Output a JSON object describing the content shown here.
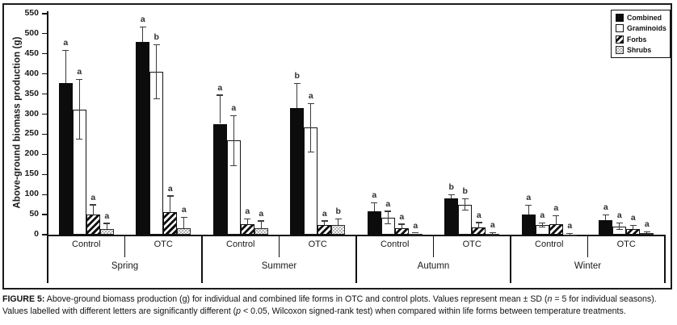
{
  "chart_data": {
    "type": "bar",
    "title": "",
    "ylabel": "Above-ground biomass production (g)",
    "xlabel": "",
    "ylim": [
      0,
      550
    ],
    "ytick_step": 50,
    "grid": false,
    "legend_position": "top-right",
    "error_bars": "mean ± SD",
    "series_names": [
      "Combined",
      "Graminoids",
      "Forbs",
      "Shrubs"
    ],
    "series_styles": [
      {
        "name": "Combined",
        "pattern": "solid-black",
        "color": "#0c0c0c"
      },
      {
        "name": "Graminoids",
        "pattern": "solid-white",
        "color": "#ffffff"
      },
      {
        "name": "Forbs",
        "pattern": "diagonal-hatch",
        "color": "#101010"
      },
      {
        "name": "Shrubs",
        "pattern": "dotted",
        "color": "#8a8a8a"
      }
    ],
    "seasons": [
      "Spring",
      "Summer",
      "Autumn",
      "Winter"
    ],
    "treatments": [
      "Control",
      "OTC"
    ],
    "groups": [
      {
        "season": "Spring",
        "treatment": "Control",
        "bars": [
          {
            "series": "Combined",
            "mean": 377,
            "sd": 80,
            "letter": "a"
          },
          {
            "series": "Graminoids",
            "mean": 312,
            "sd": 73,
            "letter": "a"
          },
          {
            "series": "Forbs",
            "mean": 50,
            "sd": 23,
            "letter": "a"
          },
          {
            "series": "Shrubs",
            "mean": 15,
            "sd": 12,
            "letter": "a"
          }
        ]
      },
      {
        "season": "Spring",
        "treatment": "OTC",
        "bars": [
          {
            "series": "Combined",
            "mean": 480,
            "sd": 35,
            "letter": "a"
          },
          {
            "series": "Graminoids",
            "mean": 406,
            "sd": 66,
            "letter": "b"
          },
          {
            "series": "Forbs",
            "mean": 57,
            "sd": 38,
            "letter": "a"
          },
          {
            "series": "Shrubs",
            "mean": 17,
            "sd": 25,
            "letter": "a"
          }
        ]
      },
      {
        "season": "Summer",
        "treatment": "Control",
        "bars": [
          {
            "series": "Combined",
            "mean": 276,
            "sd": 70,
            "letter": "a"
          },
          {
            "series": "Graminoids",
            "mean": 234,
            "sd": 61,
            "letter": "a"
          },
          {
            "series": "Forbs",
            "mean": 27,
            "sd": 11,
            "letter": "a"
          },
          {
            "series": "Shrubs",
            "mean": 16,
            "sd": 17,
            "letter": "a"
          }
        ]
      },
      {
        "season": "Summer",
        "treatment": "OTC",
        "bars": [
          {
            "series": "Combined",
            "mean": 315,
            "sd": 60,
            "letter": "b"
          },
          {
            "series": "Graminoids",
            "mean": 266,
            "sd": 59,
            "letter": "a"
          },
          {
            "series": "Forbs",
            "mean": 25,
            "sd": 8,
            "letter": "a"
          },
          {
            "series": "Shrubs",
            "mean": 24,
            "sd": 14,
            "letter": "b"
          }
        ]
      },
      {
        "season": "Autumn",
        "treatment": "Control",
        "bars": [
          {
            "series": "Combined",
            "mean": 58,
            "sd": 20,
            "letter": "a"
          },
          {
            "series": "Graminoids",
            "mean": 43,
            "sd": 14,
            "letter": "a"
          },
          {
            "series": "Forbs",
            "mean": 16,
            "sd": 9,
            "letter": "a"
          },
          {
            "series": "Shrubs",
            "mean": 2,
            "sd": 1,
            "letter": "a"
          }
        ]
      },
      {
        "season": "Autumn",
        "treatment": "OTC",
        "bars": [
          {
            "series": "Combined",
            "mean": 90,
            "sd": 8,
            "letter": "b"
          },
          {
            "series": "Graminoids",
            "mean": 75,
            "sd": 13,
            "letter": "b"
          },
          {
            "series": "Forbs",
            "mean": 18,
            "sd": 11,
            "letter": "a"
          },
          {
            "series": "Shrubs",
            "mean": 2,
            "sd": 2,
            "letter": "a"
          }
        ]
      },
      {
        "season": "Winter",
        "treatment": "Control",
        "bars": [
          {
            "series": "Combined",
            "mean": 50,
            "sd": 22,
            "letter": "a"
          },
          {
            "series": "Graminoids",
            "mean": 24,
            "sd": 4,
            "letter": "a"
          },
          {
            "series": "Forbs",
            "mean": 26,
            "sd": 20,
            "letter": "a"
          },
          {
            "series": "Shrubs",
            "mean": 1,
            "sd": 1,
            "letter": "a"
          }
        ]
      },
      {
        "season": "Winter",
        "treatment": "OTC",
        "bars": [
          {
            "series": "Combined",
            "mean": 36,
            "sd": 12,
            "letter": "a"
          },
          {
            "series": "Graminoids",
            "mean": 21,
            "sd": 7,
            "letter": "a"
          },
          {
            "series": "Forbs",
            "mean": 14,
            "sd": 8,
            "letter": "a"
          },
          {
            "series": "Shrubs",
            "mean": 4,
            "sd": 2,
            "letter": "a"
          }
        ]
      }
    ]
  },
  "caption": {
    "figure_label": "FIGURE 5:",
    "line1_pre": " Above-ground biomass production (g) for individual and combined life forms in OTC and control plots. Values represent mean ± SD (",
    "n_symbol": "n",
    "line1_post": " = 5 for individual seasons).",
    "line2_pre": "Values labelled with different letters are significantly different (",
    "p_symbol": "p",
    "line2_post": " < 0.05, Wilcoxon signed-rank test) when compared within life forms between temperature treatments."
  }
}
